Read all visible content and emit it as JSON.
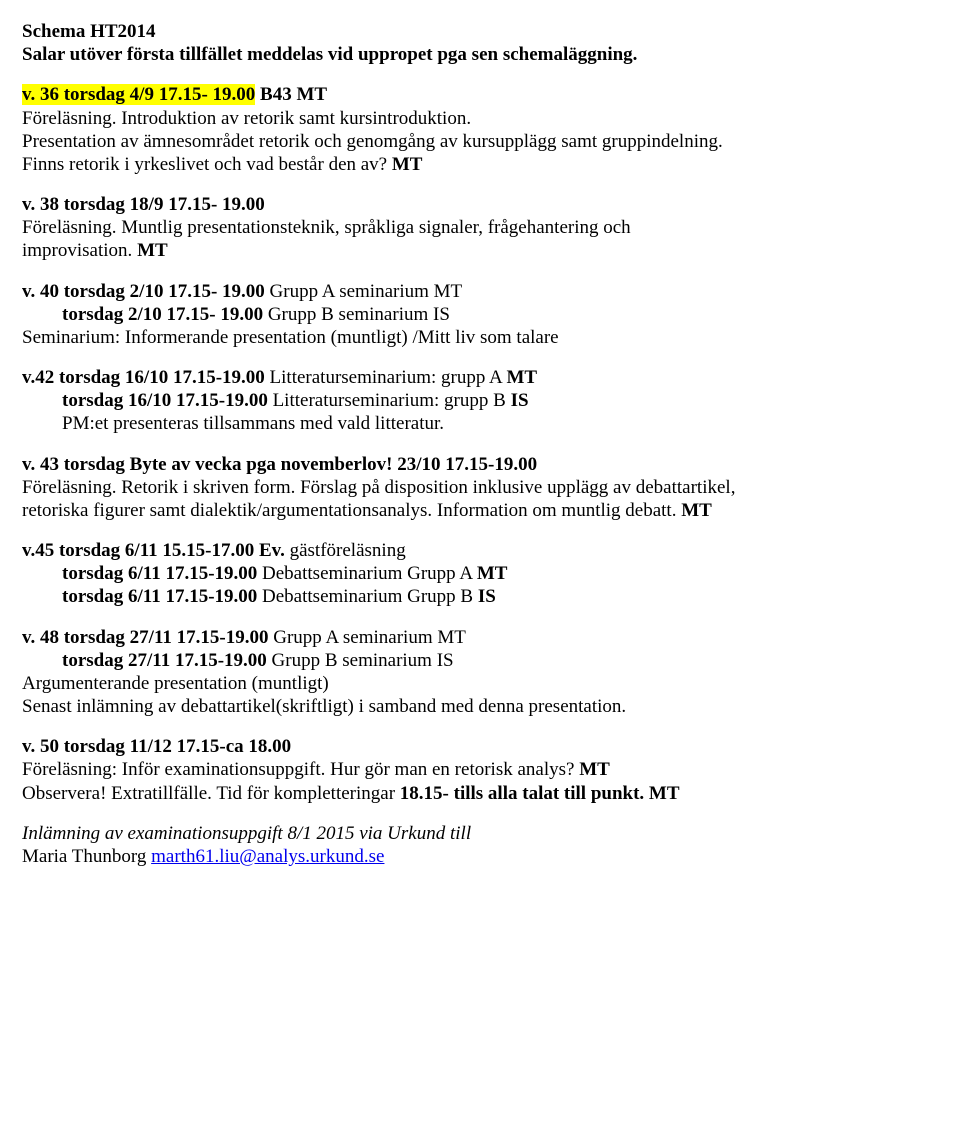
{
  "header": {
    "title": "Schema HT2014",
    "subtitle": "Salar utöver första tillfället meddelas vid uppropet pga sen schemaläggning."
  },
  "v36": {
    "heading": "v. 36 torsdag 4/9 17.15- 19.00",
    "room": " B43 MT",
    "line1": "Föreläsning. Introduktion av retorik samt kursintroduktion.",
    "line2": "Presentation av ämnesområdet retorik och genomgång av kursupplägg samt gruppindelning.",
    "line3a": "Finns retorik i yrkeslivet och vad består den av? ",
    "line3b": "MT"
  },
  "v38": {
    "heading": "v. 38 torsdag 18/9 17.15- 19.00",
    "line1": "Föreläsning. Muntlig presentationsteknik, språkliga signaler, frågehantering och",
    "line2a": "improvisation. ",
    "line2b": "MT"
  },
  "v40": {
    "heading": "v. 40 torsdag 2/10 17.15- 19.00",
    "groupA": " Grupp A seminarium MT",
    "line2head": "torsdag 2/10 17.15- 19.00",
    "groupB": " Grupp B seminarium IS",
    "desc": "Seminarium: Informerande presentation (muntligt) /Mitt liv som talare"
  },
  "v42": {
    "heading": "v.42 torsdag 16/10  17.15-19.00 ",
    "litA": "Litteraturseminarium: grupp A ",
    "mt": "MT",
    "line2head": "torsdag 16/10  17.15-19.00 ",
    "litB": "Litteraturseminarium: grupp B ",
    "is": "IS",
    "desc": "PM:et presenteras tillsammans med vald litteratur."
  },
  "v43": {
    "heading": "v. 43 torsdag Byte av vecka pga novemberlov! 23/10 17.15-19.00",
    "line1": "Föreläsning. Retorik i skriven form. Förslag på disposition inklusive upplägg av debattartikel,",
    "line2a": "retoriska figurer samt dialektik/argumentationsanalys. Information om muntlig debatt. ",
    "line2b": "MT"
  },
  "v45": {
    "heading": "v.45 torsdag 6/11 15.15-17.00  Ev. ",
    "guest": "gästföreläsning",
    "line2head": "torsdag 6/11 17.15-19.00",
    "debA": " Debattseminarium Grupp A ",
    "mt": "MT",
    "line3head": "torsdag 6/11 17.15-19.00",
    "debB": " Debattseminarium Grupp B ",
    "is": "IS"
  },
  "v48": {
    "heading": "v. 48 torsdag 27/11 17.15-19.00 ",
    "groupA": "Grupp A seminarium MT",
    "line2head": "torsdag 27/11 17.15-19.00",
    "groupB": " Grupp B seminarium IS",
    "desc1": "Argumenterande presentation (muntligt)",
    "desc2": "Senast inlämning av debattartikel(skriftligt) i samband med denna presentation."
  },
  "v50": {
    "heading": "v. 50 torsdag 11/12 17.15-ca 18.00",
    "line1a": "Föreläsning: Inför examinationsuppgift. Hur gör man en retorisk analys? ",
    "line1b": "MT",
    "line2a": "Observera! Extratillfälle. Tid för kompletteringar ",
    "line2b": "18.15- tills alla talat till punkt. MT"
  },
  "footer": {
    "line1": "Inlämning av examinationsuppgift 8/1 2015 via Urkund till",
    "line2a": "Maria Thunborg ",
    "email": "marth61.liu@analys.urkund.se"
  }
}
